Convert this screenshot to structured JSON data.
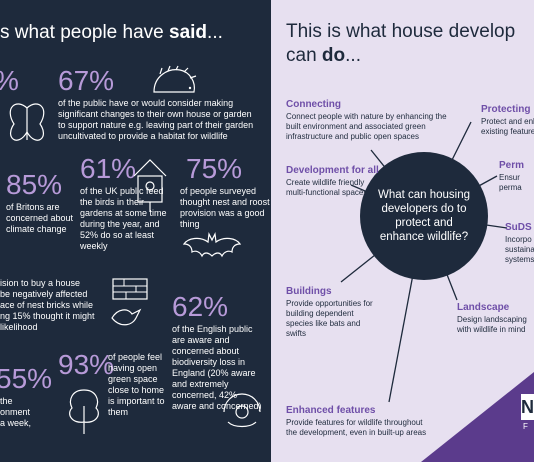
{
  "left": {
    "heading_pre": "s what people have ",
    "heading_bold": "said",
    "heading_post": "...",
    "stat_67": {
      "value": "67%",
      "text": "of the public have or would consider making significant changes to their own house or garden to support nature e.g. leaving part of their garden uncultivated to provide a habitat for wildlife"
    },
    "stat_partial_top": "%",
    "stat_85": {
      "value": "85%",
      "text": "of Britons are concerned about climate change"
    },
    "stat_61": {
      "value": "61%",
      "text": "of the UK public feed the birds in their gardens at some time during the year, and 52% do so at least weekly"
    },
    "stat_75": {
      "value": "75%",
      "text": "of people surveyed thought nest and roost provision was a good thing"
    },
    "stat_decision": {
      "text_lines": [
        "ision to buy a house",
        "be negatively affected",
        "ace of nest bricks while",
        "ng 15% thought it might",
        "likelihood"
      ]
    },
    "stat_62": {
      "value": "62%",
      "text": "of the English public are aware and concerned about biodiversity loss in England (20% aware and extremely concerned, 42% aware and concerned)"
    },
    "stat_93": {
      "value": "93%",
      "text": "of people feel having open green space close to home is important to them"
    },
    "stat_55": {
      "value": "55%",
      "text_lines": [
        "the",
        "onment",
        "a week,"
      ]
    }
  },
  "right": {
    "heading_line1": "This is what house develop",
    "heading_line2_pre": "can ",
    "heading_line2_bold": "do",
    "heading_line2_post": "...",
    "hub_text": "What can housing developers do to protect and enhance wildlife?",
    "items": {
      "connecting": {
        "title": "Connecting",
        "text": "Connect people with nature by enhancing the built environment and associated green infrastructure and public open spaces"
      },
      "development": {
        "title": "Development for all",
        "text": "Create wildlife friendly multi-functional spaces"
      },
      "buildings": {
        "title": "Buildings",
        "text": "Provide opportunities for building dependent species like bats and swifts"
      },
      "enhanced": {
        "title": "Enhanced features",
        "text": "Provide features for wildlife throughout the development, even in built-up areas"
      },
      "landscape": {
        "title": "Landscape",
        "text": "Design landscaping with wildlife in mind"
      },
      "protecting": {
        "title": "Protecting",
        "text_lines": [
          "Protect and enh",
          "existing feature"
        ]
      },
      "perm": {
        "title": "Perm",
        "text_lines": [
          "Ensur",
          "perma"
        ]
      },
      "suds": {
        "title": "SuDS",
        "text_lines": [
          "Incorpo",
          "sustaina",
          "systems"
        ]
      }
    },
    "badge": {
      "letter": "N",
      "sub": "F"
    }
  },
  "colors": {
    "navy": "#1e2a3c",
    "lavender": "#e7e0f0",
    "accent": "#b79ad8",
    "deep_purple": "#6f4fa8",
    "triangle": "#5b3b8c"
  }
}
